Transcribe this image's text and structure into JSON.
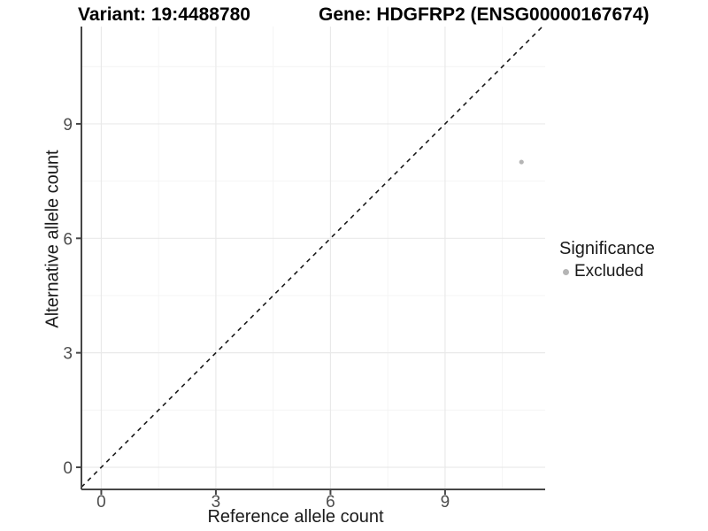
{
  "chart_data": {
    "type": "scatter",
    "titles": {
      "left": "Variant: 19:4488780",
      "right": "Gene: HDGFRP2 (ENSG00000167674)"
    },
    "xlabel": "Reference allele count",
    "ylabel": "Alternative allele count",
    "xlim": [
      -0.52,
      11.62
    ],
    "ylim": [
      -0.58,
      11.55
    ],
    "x_ticks": [
      0,
      3,
      6,
      9
    ],
    "y_ticks": [
      0,
      3,
      6,
      9
    ],
    "x_minor_ticks": [
      1.5,
      4.5,
      7.5,
      10.5
    ],
    "y_minor_ticks": [
      1.5,
      4.5,
      7.5,
      10.5
    ],
    "grid": true,
    "points": [
      {
        "x": 11,
        "y": 8,
        "series": "Excluded"
      }
    ],
    "reference_line": {
      "slope": 1,
      "intercept": 0,
      "style": "dashed"
    },
    "legend": {
      "title": "Significance",
      "position": "right",
      "items": [
        {
          "label": "Excluded",
          "color": "#b5b5b5",
          "marker": "circle"
        }
      ]
    },
    "colors": {
      "point": "#b5b5b5",
      "grid_major": "#e9e9e9",
      "grid_minor": "#f4f4f4",
      "axis_line": "#464646",
      "tick_label": "#4d4d4d",
      "reference_line": "#1a1a1a",
      "background": "#ffffff"
    }
  }
}
